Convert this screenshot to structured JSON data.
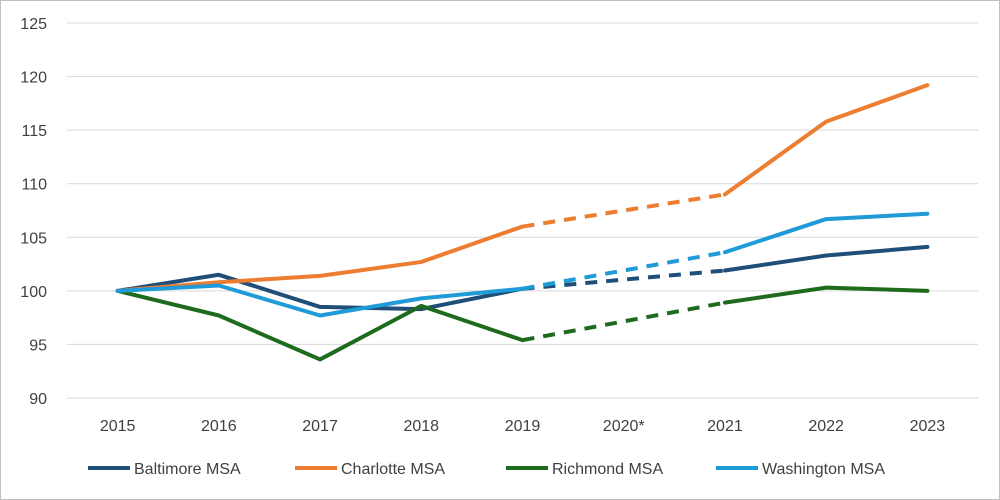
{
  "chart_data": {
    "type": "line",
    "title": "",
    "xlabel": "",
    "ylabel": "",
    "categories": [
      "2015",
      "2016",
      "2017",
      "2018",
      "2019",
      "2020*",
      "2021",
      "2022",
      "2023"
    ],
    "ylim": [
      90,
      125
    ],
    "yticks": [
      90,
      95,
      100,
      105,
      110,
      115,
      120,
      125
    ],
    "grid": "horizontal",
    "legend_position": "bottom",
    "note": "2020 value not shown; segment 2019-2021 drawn dashed",
    "series": [
      {
        "name": "Baltimore MSA",
        "color": "#1f4e79",
        "values": [
          100,
          101.5,
          98.5,
          98.3,
          100.2,
          null,
          101.9,
          103.3,
          104.1
        ]
      },
      {
        "name": "Charlotte MSA",
        "color": "#ed7d31",
        "values": [
          100,
          100.8,
          101.4,
          102.7,
          106.0,
          null,
          109.0,
          115.8,
          119.2
        ]
      },
      {
        "name": "Richmond MSA",
        "color": "#1e6b1e",
        "values": [
          100,
          97.7,
          93.6,
          98.6,
          95.4,
          null,
          98.9,
          100.3,
          100.0
        ]
      },
      {
        "name": "Washington MSA",
        "color": "#1f9bd7",
        "values": [
          100,
          100.5,
          97.7,
          99.3,
          100.2,
          null,
          103.6,
          106.7,
          107.2
        ]
      }
    ]
  }
}
